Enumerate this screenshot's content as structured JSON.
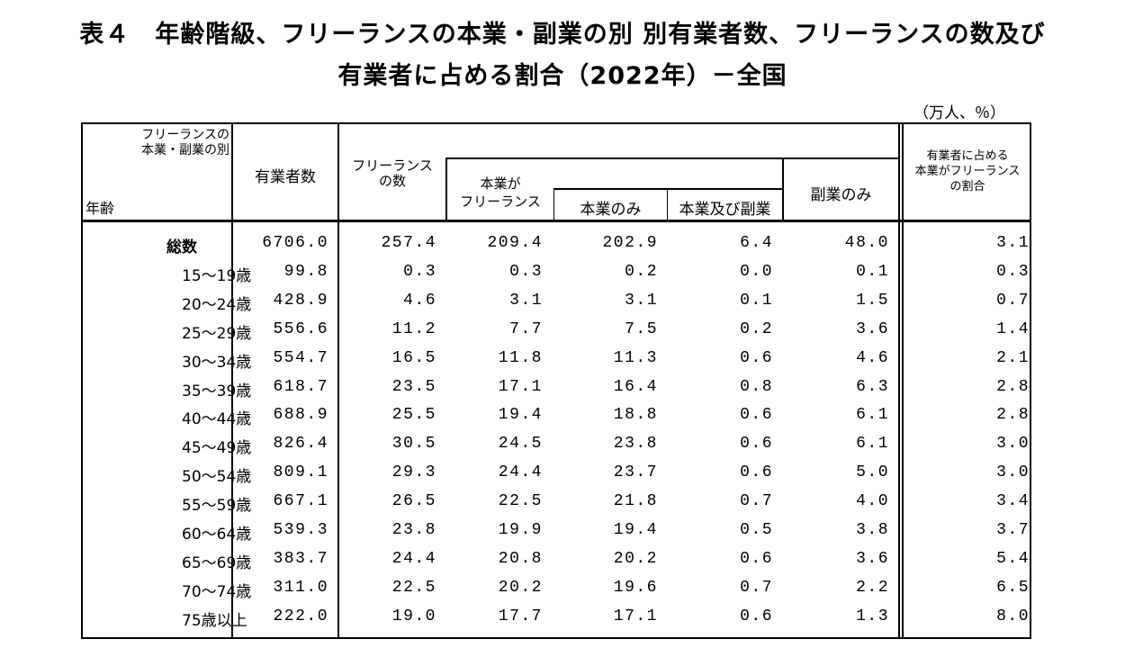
{
  "title_line1": "表４　年齢階級、フリーランスの本業・副業の別 別有業者数、フリーランスの数及び",
  "title_line2": "有業者に占める割合（2022年）－全国",
  "unit": "（万人、％）",
  "header": {
    "corner_top_1": "フリーランスの",
    "corner_top_2": "本業・副業の別",
    "corner_bottom": "年齢",
    "employed": "有業者数",
    "freelance_1": "フリーランス",
    "freelance_2": "の数",
    "main_1": "本業が",
    "main_2": "フリーランス",
    "main_only": "本業のみ",
    "main_and_side": "本業及び副業",
    "side_only": "副業のみ",
    "share_1": "有業者に占める",
    "share_2": "本業がフリーランス",
    "share_3": "の割合"
  },
  "rows": [
    {
      "age": "総数",
      "values": [
        "6706.0",
        "257.4",
        "209.4",
        "202.9",
        "6.4",
        "48.0",
        "3.1"
      ]
    },
    {
      "age": "15～19歳",
      "values": [
        "99.8",
        "0.3",
        "0.3",
        "0.2",
        "0.0",
        "0.1",
        "0.3"
      ]
    },
    {
      "age": "20～24歳",
      "values": [
        "428.9",
        "4.6",
        "3.1",
        "3.1",
        "0.1",
        "1.5",
        "0.7"
      ]
    },
    {
      "age": "25～29歳",
      "values": [
        "556.6",
        "11.2",
        "7.7",
        "7.5",
        "0.2",
        "3.6",
        "1.4"
      ]
    },
    {
      "age": "30～34歳",
      "values": [
        "554.7",
        "16.5",
        "11.8",
        "11.3",
        "0.6",
        "4.6",
        "2.1"
      ]
    },
    {
      "age": "35～39歳",
      "values": [
        "618.7",
        "23.5",
        "17.1",
        "16.4",
        "0.8",
        "6.3",
        "2.8"
      ]
    },
    {
      "age": "40～44歳",
      "values": [
        "688.9",
        "25.5",
        "19.4",
        "18.8",
        "0.6",
        "6.1",
        "2.8"
      ]
    },
    {
      "age": "45～49歳",
      "values": [
        "826.4",
        "30.5",
        "24.5",
        "23.8",
        "0.6",
        "6.1",
        "3.0"
      ]
    },
    {
      "age": "50～54歳",
      "values": [
        "809.1",
        "29.3",
        "24.4",
        "23.7",
        "0.6",
        "5.0",
        "3.0"
      ]
    },
    {
      "age": "55～59歳",
      "values": [
        "667.1",
        "26.5",
        "22.5",
        "21.8",
        "0.7",
        "4.0",
        "3.4"
      ]
    },
    {
      "age": "60～64歳",
      "values": [
        "539.3",
        "23.8",
        "19.9",
        "19.4",
        "0.5",
        "3.8",
        "3.7"
      ]
    },
    {
      "age": "65～69歳",
      "values": [
        "383.7",
        "24.4",
        "20.8",
        "20.2",
        "0.6",
        "3.6",
        "5.4"
      ]
    },
    {
      "age": "70～74歳",
      "values": [
        "311.0",
        "22.5",
        "20.2",
        "19.6",
        "0.7",
        "2.2",
        "6.5"
      ]
    },
    {
      "age": "75歳以上",
      "values": [
        "222.0",
        "19.0",
        "17.7",
        "17.1",
        "0.6",
        "1.3",
        "8.0"
      ]
    }
  ]
}
